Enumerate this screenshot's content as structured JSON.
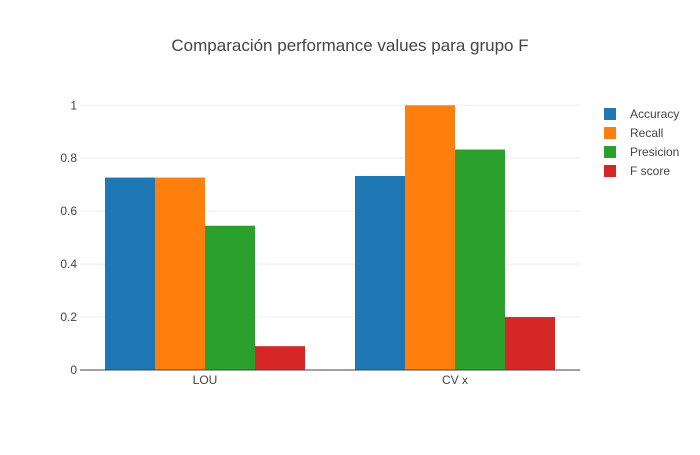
{
  "chart_data": {
    "type": "bar",
    "title": "Comparación performance values para grupo F",
    "xlabel": "",
    "ylabel": "",
    "categories": [
      "LOU",
      "CV x"
    ],
    "series": [
      {
        "name": "Accuracy",
        "values": [
          0.727,
          0.733
        ],
        "color": "#1f77b4"
      },
      {
        "name": "Recall",
        "values": [
          0.727,
          1.0
        ],
        "color": "#ff7f0e"
      },
      {
        "name": "Presicion",
        "values": [
          0.545,
          0.833
        ],
        "color": "#2ca02c"
      },
      {
        "name": "F score",
        "values": [
          0.09,
          0.2
        ],
        "color": "#d62728"
      }
    ],
    "ylim": [
      0,
      1.02
    ],
    "yticks": [
      0,
      0.2,
      0.4,
      0.6,
      0.8,
      1
    ],
    "ytick_labels": [
      "0",
      "0.2",
      "0.4",
      "0.6",
      "0.8",
      "1"
    ],
    "grid": true,
    "legend_position": "top-right"
  }
}
